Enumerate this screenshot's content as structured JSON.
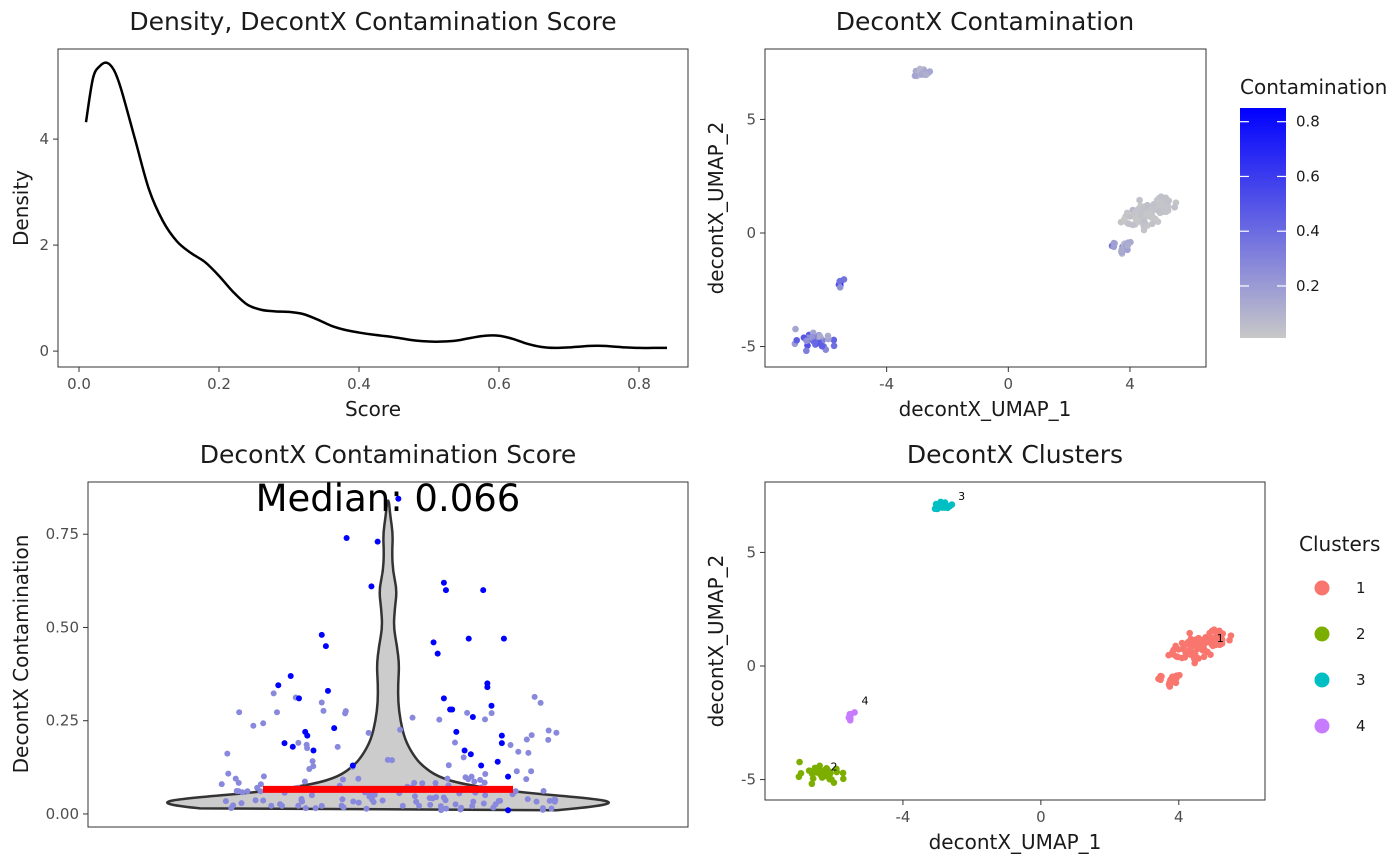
{
  "chart_data": [
    {
      "id": "density",
      "type": "line",
      "title": "Density, DecontX Contamination Score",
      "xlabel": "Score",
      "ylabel": "Density",
      "xlim": [
        -0.03,
        0.87
      ],
      "ylim": [
        -0.3,
        5.7
      ],
      "xticks": [
        0.0,
        0.2,
        0.4,
        0.6,
        0.8
      ],
      "xtick_labels": [
        "0.0",
        "0.2",
        "0.4",
        "0.6",
        "0.8"
      ],
      "yticks": [
        0,
        2,
        4
      ],
      "ytick_labels": [
        "0",
        "2",
        "4"
      ],
      "grid": false,
      "line_color": "#000000",
      "x": [
        0.01,
        0.02,
        0.03,
        0.04,
        0.05,
        0.06,
        0.08,
        0.1,
        0.12,
        0.14,
        0.16,
        0.18,
        0.2,
        0.22,
        0.24,
        0.26,
        0.28,
        0.3,
        0.32,
        0.34,
        0.36,
        0.38,
        0.4,
        0.42,
        0.44,
        0.46,
        0.48,
        0.5,
        0.52,
        0.54,
        0.56,
        0.58,
        0.6,
        0.62,
        0.64,
        0.66,
        0.68,
        0.7,
        0.72,
        0.74,
        0.76,
        0.78,
        0.8,
        0.82,
        0.84
      ],
      "y": [
        4.32,
        5.15,
        5.38,
        5.44,
        5.3,
        4.95,
        4.0,
        3.05,
        2.45,
        2.07,
        1.85,
        1.68,
        1.42,
        1.12,
        0.88,
        0.78,
        0.75,
        0.74,
        0.7,
        0.6,
        0.48,
        0.4,
        0.35,
        0.31,
        0.28,
        0.24,
        0.2,
        0.18,
        0.18,
        0.2,
        0.25,
        0.29,
        0.29,
        0.23,
        0.14,
        0.08,
        0.06,
        0.07,
        0.09,
        0.1,
        0.09,
        0.07,
        0.06,
        0.06,
        0.06
      ]
    },
    {
      "id": "umap-contam",
      "type": "scatter",
      "title": "DecontX Contamination",
      "xlabel": "decontX_UMAP_1",
      "ylabel": "decontX_UMAP_2",
      "xlim": [
        -8.0,
        6.5
      ],
      "ylim": [
        -5.9,
        8.1
      ],
      "xticks": [
        -4,
        0,
        4
      ],
      "xtick_labels": [
        "-4",
        "0",
        "4"
      ],
      "yticks": [
        -5,
        0,
        5
      ],
      "ytick_labels": [
        "-5",
        "0",
        "5"
      ],
      "grid": false,
      "legend": {
        "title": "Contamination",
        "placement": "right",
        "type": "gradient",
        "min": 0.01,
        "max": 0.85,
        "ticks": [
          0.2,
          0.4,
          0.6,
          0.8
        ],
        "tick_labels": [
          "0.2",
          "0.4",
          "0.6",
          "0.8"
        ],
        "low_color": "#c8c8c8",
        "high_color": "#0000ff"
      },
      "groups": [
        {
          "cluster": "1",
          "center": [
            4.6,
            0.9
          ],
          "spread": [
            0.75,
            0.45
          ],
          "n": 80,
          "contamination": 0.03
        },
        {
          "cluster": "1b",
          "center": [
            3.7,
            -0.6
          ],
          "spread": [
            0.35,
            0.22
          ],
          "n": 18,
          "contamination": 0.12
        },
        {
          "cluster": "2",
          "center": [
            -6.3,
            -4.7
          ],
          "spread": [
            0.55,
            0.35
          ],
          "n": 34,
          "contamination": 0.32
        },
        {
          "cluster": "3",
          "center": [
            -2.8,
            7.0
          ],
          "spread": [
            0.22,
            0.18
          ],
          "n": 22,
          "contamination": 0.12
        },
        {
          "cluster": "4",
          "center": [
            -5.5,
            -2.2
          ],
          "spread": [
            0.08,
            0.15
          ],
          "n": 9,
          "contamination": 0.58
        }
      ]
    },
    {
      "id": "violin",
      "type": "violin",
      "title": "DecontX Contamination Score",
      "xlabel": "",
      "ylabel": "DecontX Contamination",
      "annotation": "Median: 0.066",
      "median": 0.066,
      "median_color": "#ff0000",
      "ylim": [
        -0.035,
        0.89
      ],
      "yticks": [
        0.0,
        0.25,
        0.5,
        0.75
      ],
      "ytick_labels": [
        "0.00",
        "0.25",
        "0.50",
        "0.75"
      ],
      "grid": false,
      "violin_fill": "#cccccc",
      "point_color_low": "#8888dd",
      "point_color_high": "#0000ff",
      "profile_y": [
        0.01,
        0.02,
        0.03,
        0.04,
        0.06,
        0.08,
        0.1,
        0.13,
        0.16,
        0.2,
        0.25,
        0.3,
        0.35,
        0.4,
        0.45,
        0.5,
        0.55,
        0.6,
        0.65,
        0.7,
        0.75,
        0.8,
        0.84
      ],
      "profile_w": [
        0.75,
        0.92,
        1.0,
        0.93,
        0.55,
        0.33,
        0.22,
        0.15,
        0.11,
        0.075,
        0.055,
        0.045,
        0.045,
        0.05,
        0.04,
        0.025,
        0.03,
        0.04,
        0.022,
        0.018,
        0.022,
        0.01,
        0.004
      ],
      "outliers": [
        [
          -0.53,
          0.345
        ],
        [
          -0.5,
          0.19
        ],
        [
          -0.47,
          0.37
        ],
        [
          -0.46,
          0.18
        ],
        [
          -0.43,
          0.31
        ],
        [
          -0.4,
          0.22
        ],
        [
          -0.39,
          0.21
        ],
        [
          -0.36,
          0.17
        ],
        [
          -0.32,
          0.48
        ],
        [
          -0.3,
          0.45
        ],
        [
          -0.29,
          0.33
        ],
        [
          -0.26,
          0.23
        ],
        [
          -0.2,
          0.74
        ],
        [
          -0.17,
          0.13
        ],
        [
          -0.05,
          0.73
        ],
        [
          -0.08,
          0.61
        ],
        [
          0.22,
          0.46
        ],
        [
          0.24,
          0.43
        ],
        [
          0.27,
          0.62
        ],
        [
          0.27,
          0.31
        ],
        [
          0.28,
          0.6
        ],
        [
          0.3,
          0.28
        ],
        [
          0.31,
          0.28
        ],
        [
          0.33,
          0.22
        ],
        [
          0.37,
          0.17
        ],
        [
          0.39,
          0.47
        ],
        [
          0.4,
          0.16
        ],
        [
          0.41,
          0.26
        ],
        [
          0.45,
          0.13
        ],
        [
          0.46,
          0.6
        ],
        [
          0.48,
          0.35
        ],
        [
          0.48,
          0.34
        ],
        [
          0.5,
          0.29
        ],
        [
          0.53,
          0.14
        ],
        [
          0.55,
          0.19
        ],
        [
          0.55,
          0.21
        ],
        [
          0.56,
          0.47
        ],
        [
          0.58,
          0.1
        ],
        [
          0.58,
          0.01
        ],
        [
          0.05,
          0.845
        ]
      ]
    },
    {
      "id": "umap-clusters",
      "type": "scatter",
      "title": "DecontX Clusters",
      "xlabel": "decontX_UMAP_1",
      "ylabel": "decontX_UMAP_2",
      "xlim": [
        -8.0,
        6.5
      ],
      "ylim": [
        -5.9,
        8.1
      ],
      "xticks": [
        -4,
        0,
        4
      ],
      "xtick_labels": [
        "-4",
        "0",
        "4"
      ],
      "yticks": [
        -5,
        0,
        5
      ],
      "ytick_labels": [
        "-5",
        "0",
        "5"
      ],
      "grid": false,
      "legend": {
        "title": "Clusters",
        "placement": "right",
        "entries": [
          {
            "label": "1",
            "color": "#f8766d"
          },
          {
            "label": "2",
            "color": "#7cae00"
          },
          {
            "label": "3",
            "color": "#00bfc4"
          },
          {
            "label": "4",
            "color": "#c77cff"
          }
        ]
      },
      "cluster_labels": [
        {
          "text": "1",
          "x": 5.1,
          "y": 1.05
        },
        {
          "text": "2",
          "x": -6.1,
          "y": -4.6
        },
        {
          "text": "3",
          "x": -2.4,
          "y": 7.3
        },
        {
          "text": "4",
          "x": -5.2,
          "y": -1.7
        }
      ]
    }
  ]
}
